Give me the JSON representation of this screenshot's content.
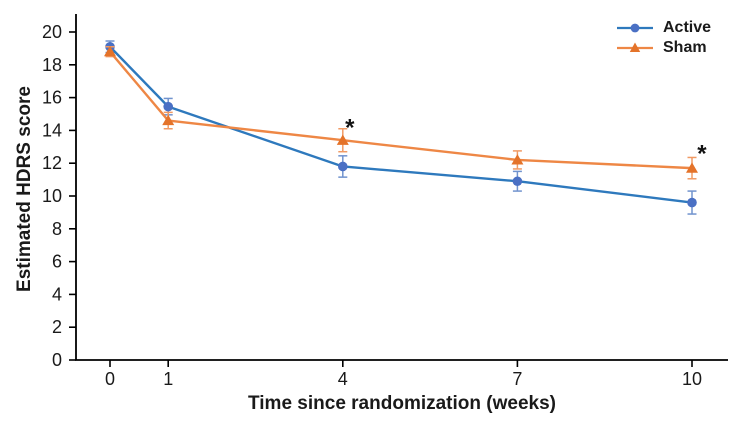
{
  "figure": {
    "background": "#ffffff",
    "text_color": "#1a1a1a",
    "axis_color": "#000000"
  },
  "chart_data": {
    "type": "line",
    "title": "",
    "xlabel": "Time since randomization (weeks)",
    "ylabel": "Estimated HDRS score",
    "x": [
      0,
      1,
      4,
      7,
      10
    ],
    "xticks": [
      "0",
      "1",
      "4",
      "7",
      "10"
    ],
    "yticks": [
      0,
      2,
      4,
      6,
      8,
      10,
      12,
      14,
      16,
      18,
      20
    ],
    "xlim": [
      -0.58,
      10.62
    ],
    "ylim": [
      0,
      21
    ],
    "grid": false,
    "legend_position": "top-right",
    "error_bars": true,
    "series": [
      {
        "name": "Active",
        "marker": "circle",
        "line_color": "#2e79bd",
        "marker_color": "#4a70c4",
        "error_color": "#7193ce",
        "values": [
          19.1,
          15.45,
          11.8,
          10.9,
          9.6
        ],
        "errors": [
          0.35,
          0.5,
          0.65,
          0.6,
          0.7
        ]
      },
      {
        "name": "Sham",
        "marker": "triangle",
        "line_color": "#ee8745",
        "marker_color": "#e4732a",
        "error_color": "#f19a64",
        "values": [
          18.8,
          14.6,
          13.4,
          12.2,
          11.7
        ],
        "errors": [
          0.3,
          0.5,
          0.7,
          0.55,
          0.65
        ]
      }
    ],
    "annotations": [
      {
        "text": "*",
        "x": 4.12,
        "y": 14.55
      },
      {
        "text": "*",
        "x": 10.17,
        "y": 12.95
      }
    ]
  }
}
